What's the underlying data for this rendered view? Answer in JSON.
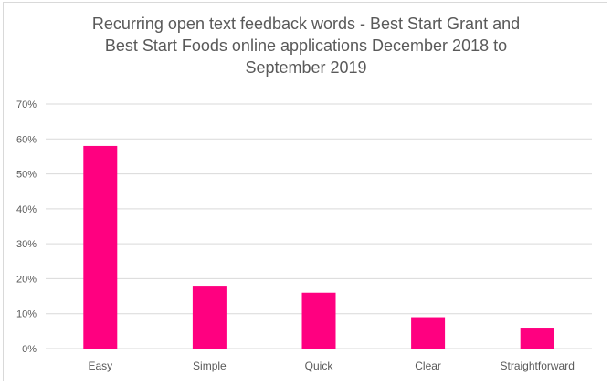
{
  "chart_data": {
    "type": "bar",
    "title_lines": [
      "Recurring open text feedback words - Best Start Grant and",
      "Best Start Foods online applications December 2018 to",
      "September 2019"
    ],
    "categories": [
      "Easy",
      "Simple",
      "Quick",
      "Clear",
      "Straightforward"
    ],
    "values": [
      0.58,
      0.18,
      0.16,
      0.09,
      0.06
    ],
    "value_format": "percent",
    "ylim": [
      0,
      0.7
    ],
    "yticks": [
      0,
      0.1,
      0.2,
      0.3,
      0.4,
      0.5,
      0.6,
      0.7
    ],
    "ytick_labels": [
      "0%",
      "10%",
      "20%",
      "30%",
      "40%",
      "50%",
      "60%",
      "70%"
    ],
    "grid": true,
    "legend": "none",
    "bar_color": "#ff0080",
    "grid_color": "#d9d9d9"
  }
}
